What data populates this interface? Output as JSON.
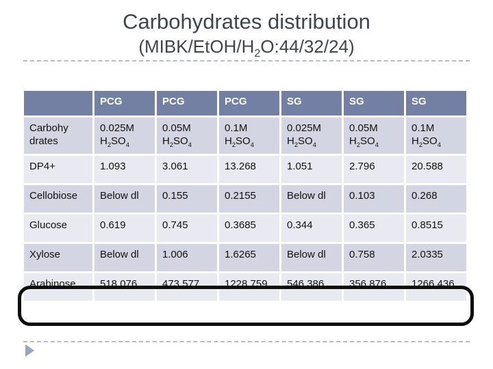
{
  "slide": {
    "title": "Carbohydrates distribution",
    "subtitle": "(MIBK/EtOH/H_2O:44/32/24)"
  },
  "theme": {
    "header_bg": "#7380a4",
    "band_dark": "#d3d5e2",
    "band_light": "#e9eaf1",
    "title_color": "#3f444d",
    "highlight_border": "#0d0d0d",
    "arrow_color": "#93a6c3",
    "divider_color": "#b7bbc5"
  },
  "table": {
    "header": [
      "",
      "PCG",
      "PCG",
      "PCG",
      "SG",
      "SG",
      "SG"
    ],
    "rows": [
      {
        "label": "Carbohy\ndrates",
        "cells": [
          "0.025M\nH_2SO_4",
          "0.05M\nH_2SO_4",
          "0.1M\nH_2SO_4",
          "0.025M\nH_2SO_4",
          "0.05M\nH_2SO_4",
          "0.1M\nH_2SO_4"
        ]
      },
      {
        "label": "DP4+",
        "cells": [
          "1.093",
          "3.061",
          "13.268",
          "1.051",
          "2.796",
          "20.588"
        ]
      },
      {
        "label": "Cellobiose",
        "cells": [
          "Below dl",
          "0.155",
          "0.2155",
          "Below dl",
          "0.103",
          "0.268"
        ]
      },
      {
        "label": "Glucose",
        "cells": [
          "0.619",
          "0.745",
          "0.3685",
          "0.344",
          "0.365",
          "0.8515"
        ]
      },
      {
        "label": "Xylose",
        "cells": [
          "Below dl",
          "1.006",
          "1.6265",
          "Below dl",
          "0.758",
          "2.0335"
        ]
      },
      {
        "label": "Arabinose",
        "cells": [
          "518.076",
          "473.577",
          "1228.759",
          "546.386",
          "356.876",
          "1266.436"
        ]
      }
    ],
    "highlighted_row_label": "Arabinose"
  }
}
